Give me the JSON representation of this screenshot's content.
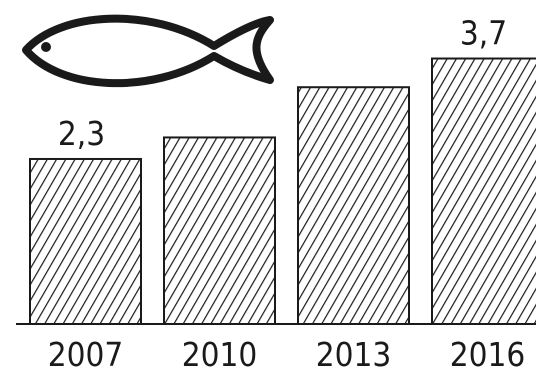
{
  "chart_data": {
    "type": "bar",
    "categories": [
      "2007",
      "2010",
      "2013",
      "2016"
    ],
    "values": [
      2.3,
      2.6,
      3.3,
      3.7
    ],
    "data_labels": [
      "2,3",
      null,
      null,
      "3,7"
    ],
    "title": "",
    "xlabel": "",
    "ylabel": "",
    "ylim": [
      0,
      4.0
    ],
    "bar_fill": "diagonal-hatch",
    "colors": {
      "ink": "#1a1a1a",
      "background": "#ffffff"
    },
    "icon": "fish-icon"
  }
}
